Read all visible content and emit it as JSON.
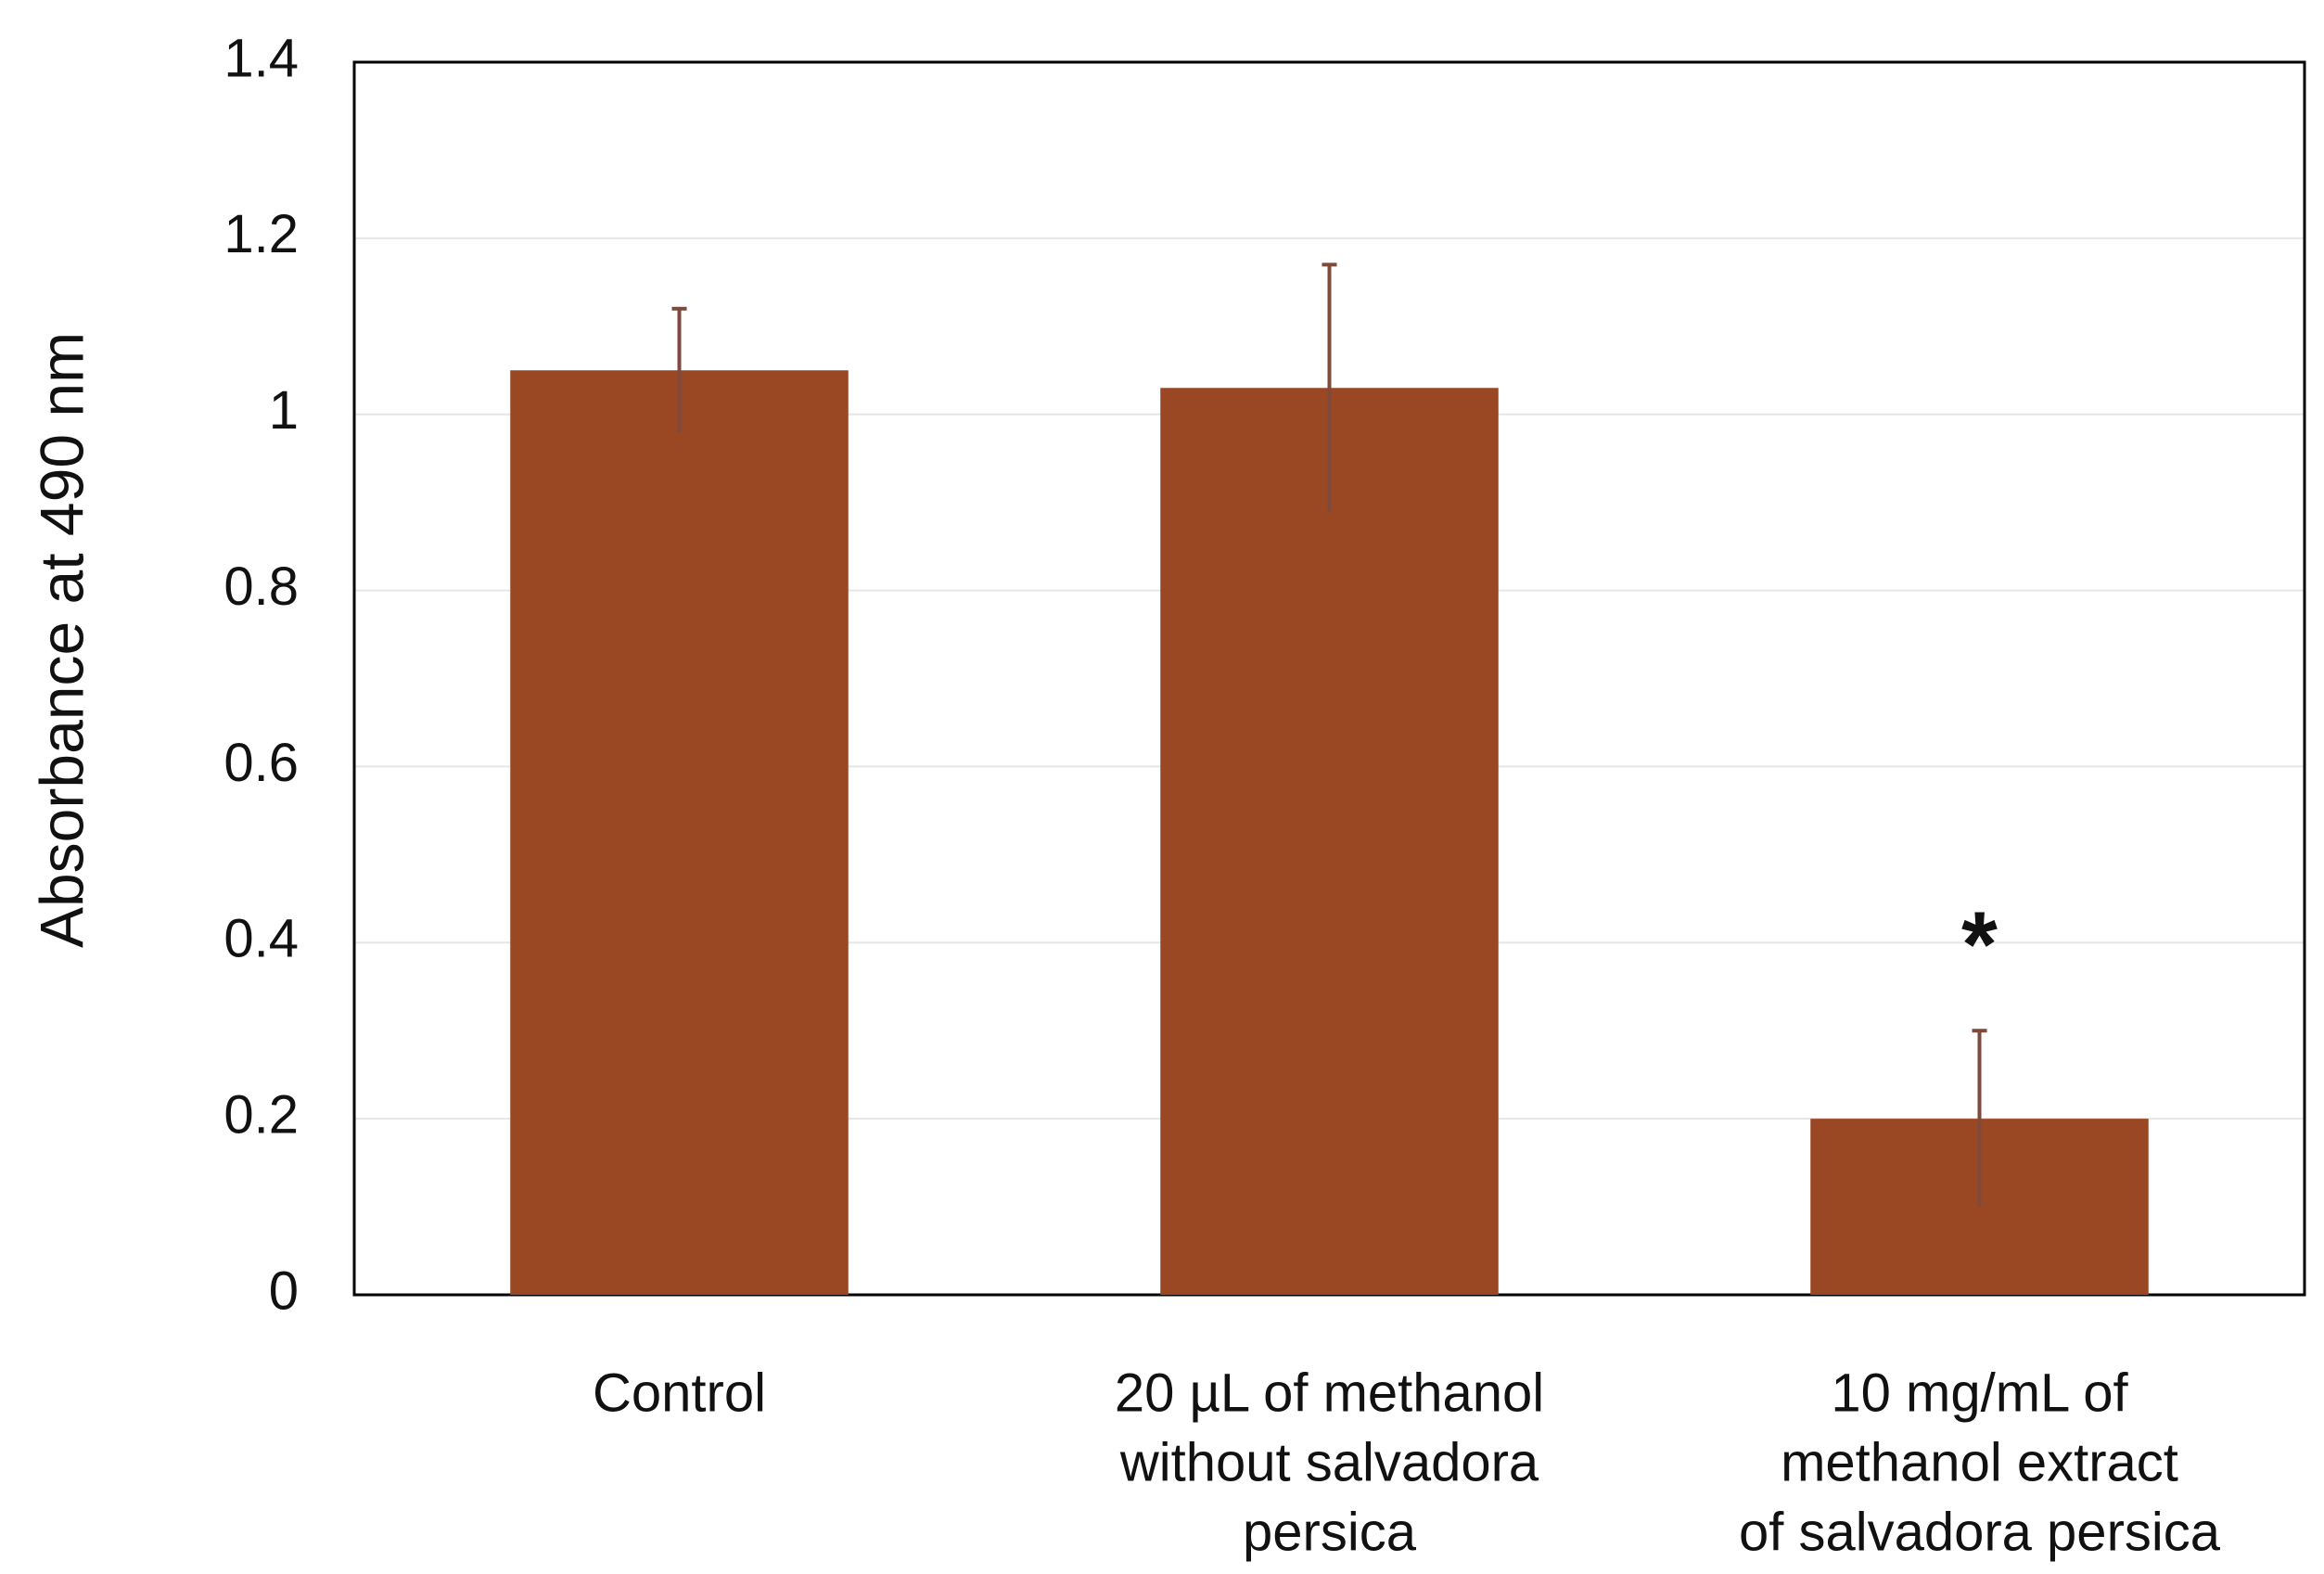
{
  "chart_data": {
    "type": "bar",
    "y_label": "Absorbance at 490 nm",
    "categories": [
      [
        "Control"
      ],
      [
        "20 µL of methanol",
        "without salvadora",
        "persica"
      ],
      [
        "10 mg/mL of",
        "methanol extract",
        "of salvadora persica"
      ]
    ],
    "values": [
      1.05,
      1.03,
      0.2
    ],
    "errors": [
      0.07,
      0.14,
      0.1
    ],
    "color": "#9a4724",
    "error_color": "#7d4a3c",
    "annotation": "*",
    "ylim": [
      0,
      1.4
    ],
    "yticks": [
      0,
      0.2,
      0.4,
      0.6,
      0.8,
      1,
      1.2,
      1.4
    ],
    "grid": true
  }
}
